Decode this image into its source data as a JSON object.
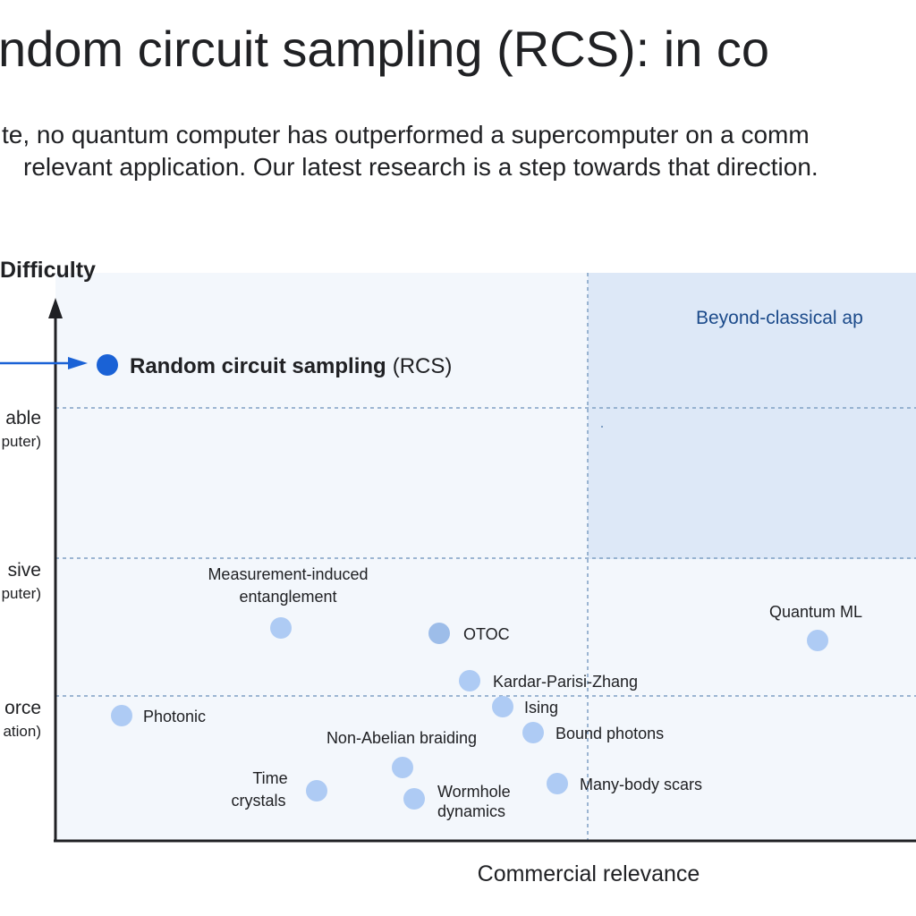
{
  "slide": {
    "title": "ndom circuit sampling (RCS): in co",
    "subtitle_line1": "te, no quantum computer has outperformed a supercomputer on a comm",
    "subtitle_line2": "relevant application. Our latest research is a step towards that direction."
  },
  "diagram": {
    "y_axis_title": "Difficulty",
    "x_axis_title": "Commercial relevance",
    "region_label": "Beyond-classical ap",
    "levels": [
      {
        "label": "able",
        "sublabel": "puter)"
      },
      {
        "label": "sive",
        "sublabel": "puter)"
      },
      {
        "label": "orce",
        "sublabel": "ation)"
      }
    ],
    "highlight": {
      "label": "Random circuit sampling",
      "label_suffix": "(RCS)",
      "color": "#1a62d6"
    },
    "points": [
      {
        "line1": "Measurement-induced",
        "line2": "entanglement"
      },
      {
        "line1": "OTOC"
      },
      {
        "line1": "Kardar-Parisi-Zhang"
      },
      {
        "line1": "Ising"
      },
      {
        "line1": "Bound photons"
      },
      {
        "line1": "Photonic"
      },
      {
        "line1": "Non-Abelian braiding"
      },
      {
        "line1": "Time",
        "line2": "crystals"
      },
      {
        "line1": "Wormhole",
        "line2": "dynamics"
      },
      {
        "line1": "Many-body scars"
      },
      {
        "line1": "Quantum ML"
      }
    ],
    "colors": {
      "point": "#aecbf4",
      "region": "#dde8f7",
      "region_text": "#1b4a8a",
      "grid": "#7f9fc4"
    }
  }
}
